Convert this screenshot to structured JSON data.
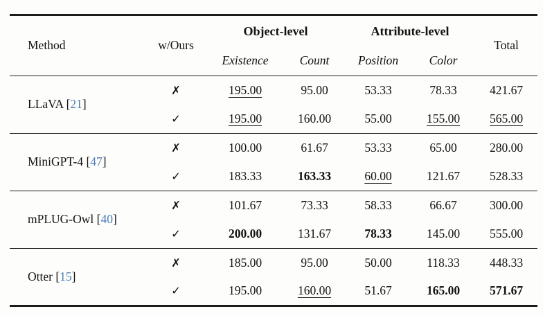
{
  "page": {
    "background": "#fdfdfc"
  },
  "colors": {
    "text": "#111111",
    "rule": "#1c1c1c",
    "citation_blue": "#4a7cb7"
  },
  "table": {
    "header": {
      "method": "Method",
      "w_ours": "w/Ours",
      "group_object": "Object-level",
      "group_attribute": "Attribute-level",
      "sub_existence": "Existence",
      "sub_count": "Count",
      "sub_position": "Position",
      "sub_color": "Color",
      "total": "Total"
    },
    "brackets": {
      "open": "[",
      "close": "]"
    },
    "groups": [
      {
        "method": "LLaVA",
        "cite": "21",
        "rowA": {
          "mark": "✗",
          "cells": [
            {
              "t": "195.00",
              "s": "underline"
            },
            {
              "t": "95.00",
              "s": ""
            },
            {
              "t": "53.33",
              "s": ""
            },
            {
              "t": "78.33",
              "s": ""
            },
            {
              "t": "421.67",
              "s": ""
            }
          ]
        },
        "rowB": {
          "mark": "✓",
          "cells": [
            {
              "t": "195.00",
              "s": "underline"
            },
            {
              "t": "160.00",
              "s": ""
            },
            {
              "t": "55.00",
              "s": ""
            },
            {
              "t": "155.00",
              "s": "underline"
            },
            {
              "t": "565.00",
              "s": "underline"
            }
          ]
        }
      },
      {
        "method": "MiniGPT-4",
        "cite": "47",
        "rowA": {
          "mark": "✗",
          "cells": [
            {
              "t": "100.00",
              "s": ""
            },
            {
              "t": "61.67",
              "s": ""
            },
            {
              "t": "53.33",
              "s": ""
            },
            {
              "t": "65.00",
              "s": ""
            },
            {
              "t": "280.00",
              "s": ""
            }
          ]
        },
        "rowB": {
          "mark": "✓",
          "cells": [
            {
              "t": "183.33",
              "s": ""
            },
            {
              "t": "163.33",
              "s": "bold"
            },
            {
              "t": "60.00",
              "s": "underline"
            },
            {
              "t": "121.67",
              "s": ""
            },
            {
              "t": "528.33",
              "s": ""
            }
          ]
        }
      },
      {
        "method": "mPLUG-Owl",
        "cite": "40",
        "rowA": {
          "mark": "✗",
          "cells": [
            {
              "t": "101.67",
              "s": ""
            },
            {
              "t": "73.33",
              "s": ""
            },
            {
              "t": "58.33",
              "s": ""
            },
            {
              "t": "66.67",
              "s": ""
            },
            {
              "t": "300.00",
              "s": ""
            }
          ]
        },
        "rowB": {
          "mark": "✓",
          "cells": [
            {
              "t": "200.00",
              "s": "bold"
            },
            {
              "t": "131.67",
              "s": ""
            },
            {
              "t": "78.33",
              "s": "bold"
            },
            {
              "t": "145.00",
              "s": ""
            },
            {
              "t": "555.00",
              "s": ""
            }
          ]
        }
      },
      {
        "method": "Otter",
        "cite": "15",
        "rowA": {
          "mark": "✗",
          "cells": [
            {
              "t": "185.00",
              "s": ""
            },
            {
              "t": "95.00",
              "s": ""
            },
            {
              "t": "50.00",
              "s": ""
            },
            {
              "t": "118.33",
              "s": ""
            },
            {
              "t": "448.33",
              "s": ""
            }
          ]
        },
        "rowB": {
          "mark": "✓",
          "cells": [
            {
              "t": "195.00",
              "s": ""
            },
            {
              "t": "160.00",
              "s": "underline"
            },
            {
              "t": "51.67",
              "s": ""
            },
            {
              "t": "165.00",
              "s": "bold"
            },
            {
              "t": "571.67",
              "s": "bold"
            }
          ]
        }
      }
    ]
  }
}
